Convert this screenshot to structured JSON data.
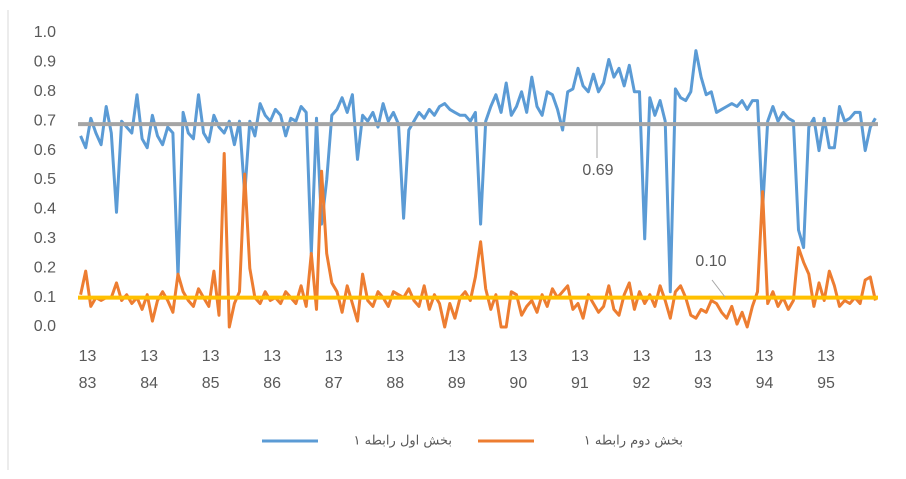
{
  "chart_data": {
    "type": "line",
    "categories": [
      "13 83",
      null,
      null,
      null,
      null,
      null,
      null,
      null,
      null,
      null,
      null,
      null,
      "13 84",
      null,
      null,
      null,
      null,
      null,
      null,
      null,
      null,
      null,
      null,
      null,
      "13 85",
      null,
      null,
      null,
      null,
      null,
      null,
      null,
      null,
      null,
      null,
      null,
      "13 86",
      null,
      null,
      null,
      null,
      null,
      null,
      null,
      null,
      null,
      null,
      null,
      "13 87",
      null,
      null,
      null,
      null,
      null,
      null,
      null,
      null,
      null,
      null,
      null,
      "13 88",
      null,
      null,
      null,
      null,
      null,
      null,
      null,
      null,
      null,
      null,
      null,
      "13 89",
      null,
      null,
      null,
      null,
      null,
      null,
      null,
      null,
      null,
      null,
      null,
      "13 90",
      null,
      null,
      null,
      null,
      null,
      null,
      null,
      null,
      null,
      null,
      null,
      "13 91",
      null,
      null,
      null,
      null,
      null,
      null,
      null,
      null,
      null,
      null,
      null,
      "13 92",
      null,
      null,
      null,
      null,
      null,
      null,
      null,
      null,
      null,
      null,
      null,
      "13 93",
      null,
      null,
      null,
      null,
      null,
      null,
      null,
      null,
      null,
      null,
      null,
      "13 94",
      null,
      null,
      null,
      null,
      null,
      null,
      null,
      null,
      null,
      null,
      null,
      "13 95",
      null,
      null,
      null,
      null,
      null,
      null,
      null,
      null,
      null,
      null,
      null
    ],
    "series": [
      {
        "name": "بخش اول رابطه ۱",
        "color": "#5b9bd5",
        "values": [
          0.65,
          0.61,
          0.71,
          0.66,
          0.62,
          0.75,
          0.66,
          0.39,
          0.7,
          0.68,
          0.66,
          0.79,
          0.64,
          0.61,
          0.72,
          0.65,
          0.62,
          0.68,
          0.66,
          0.17,
          0.73,
          0.66,
          0.64,
          0.79,
          0.66,
          0.63,
          0.72,
          0.68,
          0.66,
          0.7,
          0.62,
          0.7,
          0.45,
          0.7,
          0.65,
          0.76,
          0.72,
          0.7,
          0.74,
          0.72,
          0.65,
          0.71,
          0.7,
          0.75,
          0.73,
          0.25,
          0.71,
          0.35,
          0.5,
          0.72,
          0.74,
          0.78,
          0.73,
          0.79,
          0.57,
          0.72,
          0.7,
          0.73,
          0.68,
          0.76,
          0.7,
          0.73,
          0.69,
          0.37,
          0.67,
          0.7,
          0.73,
          0.71,
          0.74,
          0.72,
          0.75,
          0.76,
          0.74,
          0.73,
          0.72,
          0.72,
          0.7,
          0.73,
          0.35,
          0.7,
          0.75,
          0.79,
          0.73,
          0.83,
          0.72,
          0.75,
          0.8,
          0.73,
          0.85,
          0.75,
          0.72,
          0.8,
          0.79,
          0.74,
          0.67,
          0.8,
          0.81,
          0.88,
          0.82,
          0.8,
          0.86,
          0.8,
          0.83,
          0.91,
          0.85,
          0.88,
          0.82,
          0.89,
          0.8,
          0.8,
          0.3,
          0.78,
          0.72,
          0.77,
          0.7,
          0.12,
          0.81,
          0.78,
          0.77,
          0.8,
          0.94,
          0.85,
          0.79,
          0.8,
          0.73,
          0.74,
          0.75,
          0.76,
          0.75,
          0.77,
          0.74,
          0.77,
          0.77,
          0.4,
          0.7,
          0.75,
          0.7,
          0.73,
          0.71,
          0.7,
          0.33,
          0.27,
          0.68,
          0.71,
          0.6,
          0.71,
          0.61,
          0.61,
          0.75,
          0.7,
          0.71,
          0.73,
          0.73,
          0.6,
          0.68,
          0.71
        ]
      },
      {
        "name": "بخش دوم رابطه ۱",
        "color": "#ed7d31",
        "values": [
          0.11,
          0.19,
          0.07,
          0.1,
          0.09,
          0.1,
          0.1,
          0.15,
          0.09,
          0.11,
          0.08,
          0.1,
          0.06,
          0.11,
          0.02,
          0.09,
          0.12,
          0.09,
          0.05,
          0.18,
          0.12,
          0.09,
          0.07,
          0.13,
          0.1,
          0.07,
          0.19,
          0.04,
          0.59,
          0.0,
          0.08,
          0.12,
          0.52,
          0.2,
          0.1,
          0.08,
          0.12,
          0.09,
          0.1,
          0.08,
          0.12,
          0.1,
          0.08,
          0.14,
          0.07,
          0.25,
          0.06,
          0.53,
          0.25,
          0.15,
          0.12,
          0.05,
          0.14,
          0.08,
          0.02,
          0.18,
          0.09,
          0.07,
          0.12,
          0.1,
          0.07,
          0.12,
          0.11,
          0.1,
          0.13,
          0.09,
          0.07,
          0.14,
          0.06,
          0.11,
          0.08,
          0.0,
          0.08,
          0.03,
          0.1,
          0.12,
          0.09,
          0.17,
          0.29,
          0.13,
          0.06,
          0.11,
          0.0,
          0.0,
          0.12,
          0.11,
          0.04,
          0.07,
          0.09,
          0.05,
          0.11,
          0.07,
          0.13,
          0.1,
          0.12,
          0.14,
          0.06,
          0.08,
          0.03,
          0.11,
          0.08,
          0.05,
          0.07,
          0.14,
          0.06,
          0.04,
          0.11,
          0.15,
          0.06,
          0.12,
          0.08,
          0.11,
          0.07,
          0.14,
          0.09,
          0.03,
          0.12,
          0.14,
          0.1,
          0.04,
          0.03,
          0.06,
          0.05,
          0.09,
          0.08,
          0.05,
          0.03,
          0.07,
          0.01,
          0.05,
          0.0,
          0.07,
          0.12,
          0.46,
          0.08,
          0.12,
          0.07,
          0.1,
          0.06,
          0.09,
          0.27,
          0.22,
          0.18,
          0.07,
          0.15,
          0.09,
          0.19,
          0.14,
          0.07,
          0.09,
          0.08,
          0.1,
          0.08,
          0.16,
          0.17,
          0.09
        ]
      }
    ],
    "reference_lines": [
      {
        "value": 0.69,
        "color": "#a5a5a5"
      },
      {
        "value": 0.1,
        "label": "0.10",
        "color": "#ffc000"
      }
    ],
    "ylim": [
      0,
      1
    ],
    "yticks": [
      {
        "value": 0,
        "label": "0.0"
      },
      0.1,
      0.2,
      0.3,
      0.4,
      0.5,
      0.6,
      0.7,
      0.8,
      0.9,
      {
        "value": 1,
        "label": "1.0"
      }
    ],
    "legend": "bottom"
  }
}
